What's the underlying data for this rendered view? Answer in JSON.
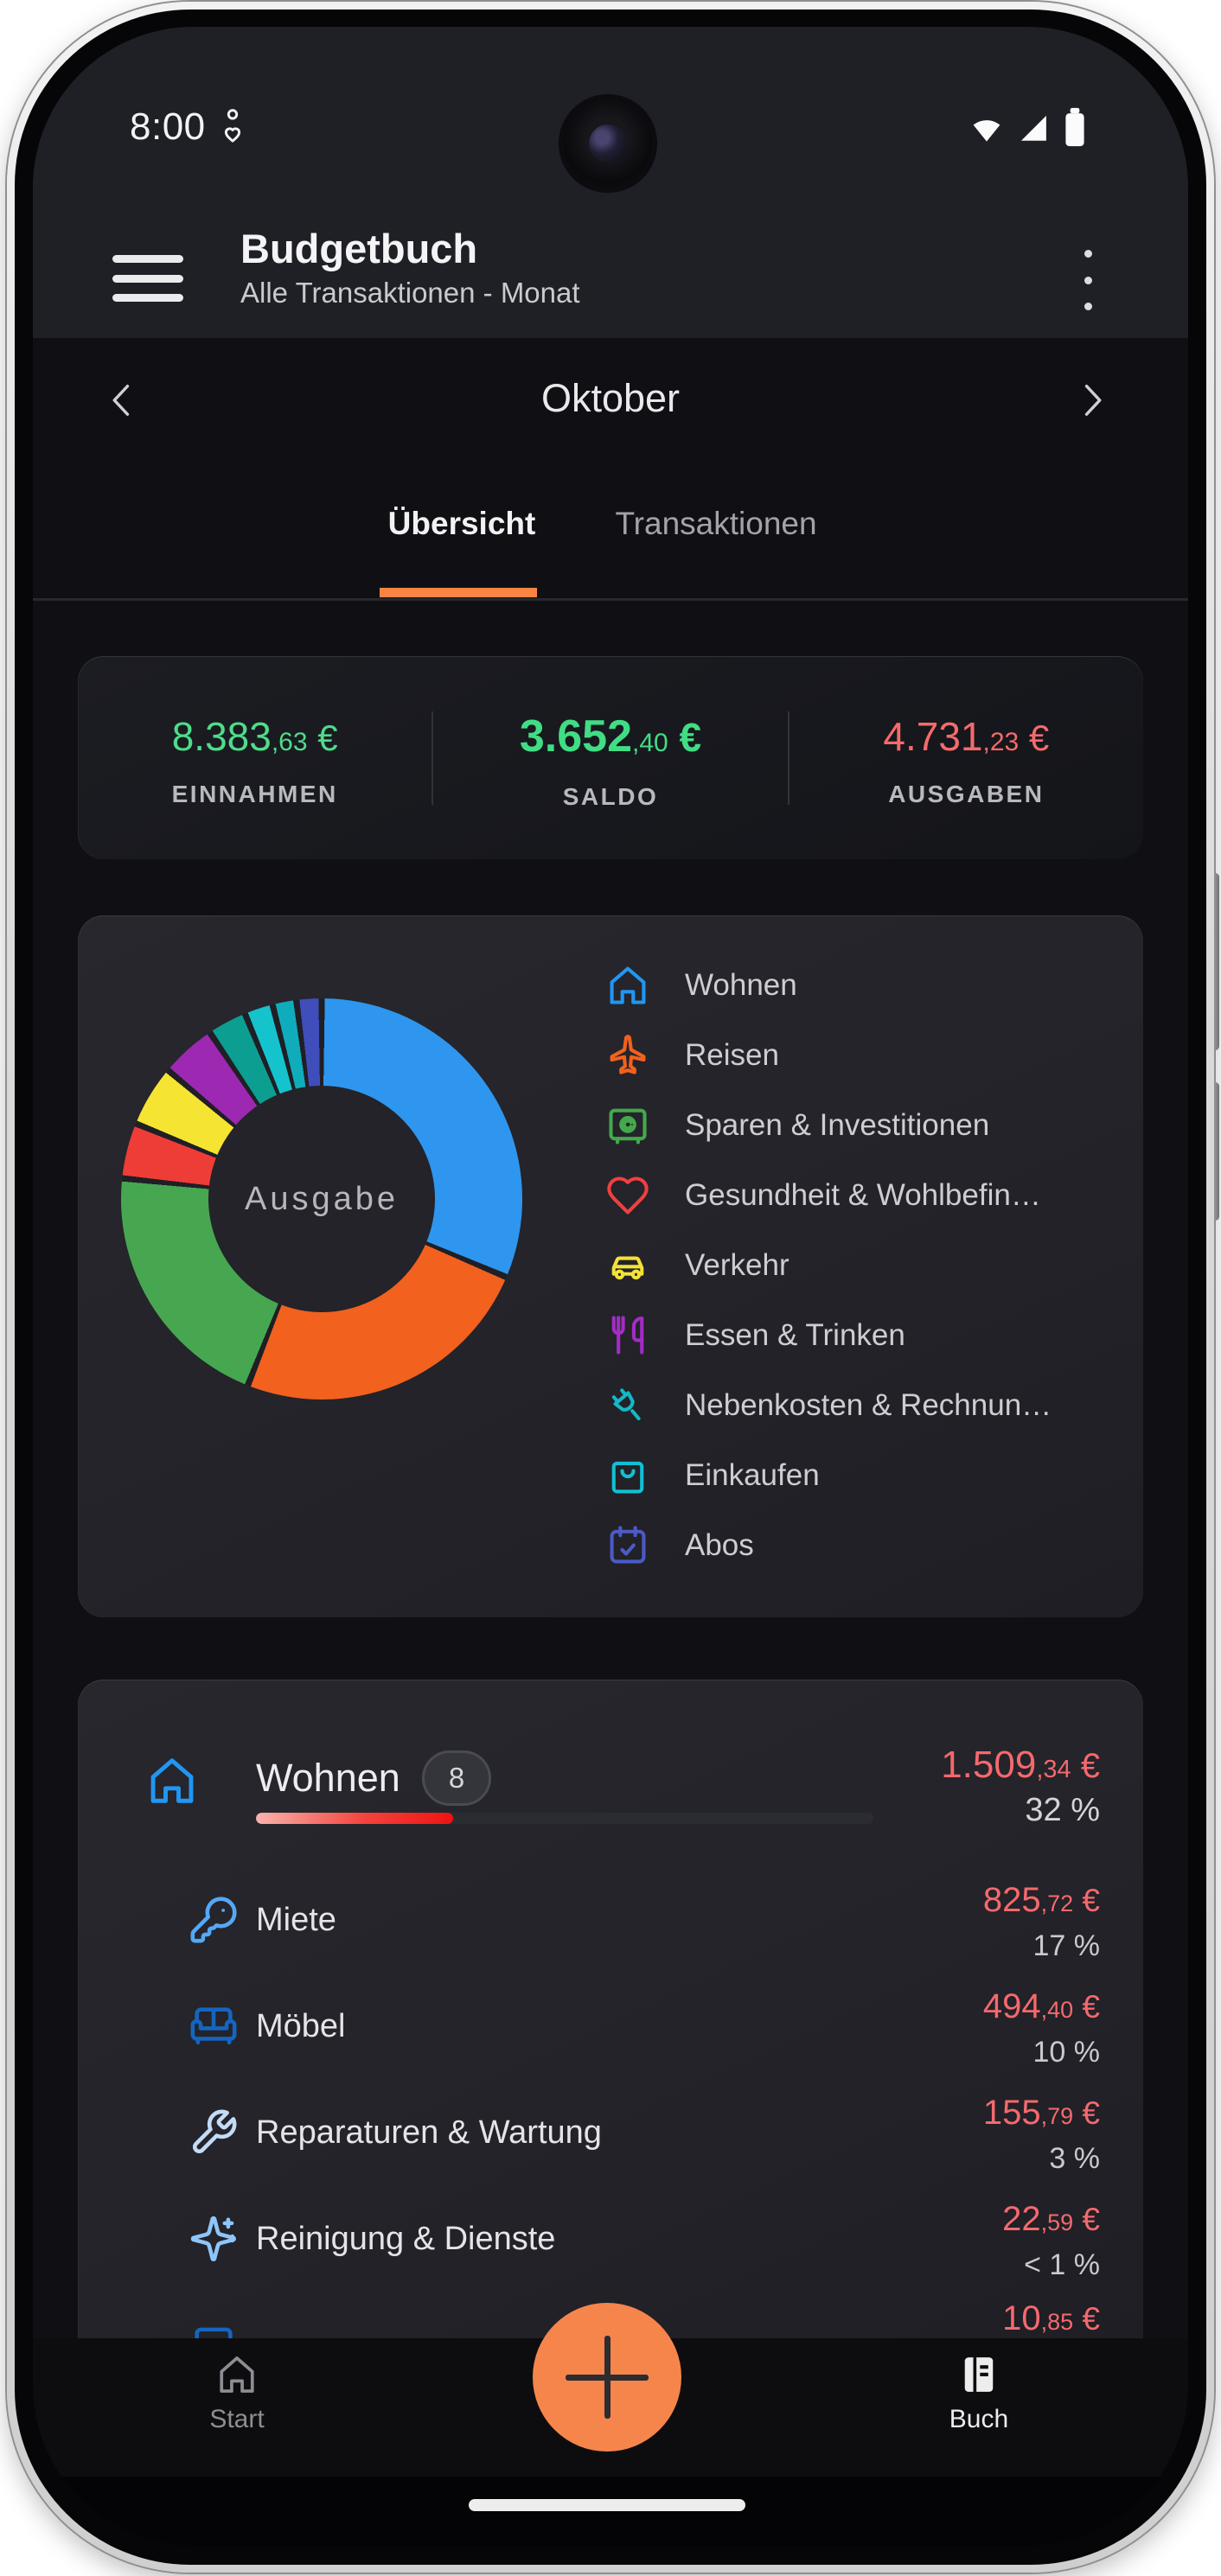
{
  "status": {
    "time": "8:00",
    "left_icon": "notification-person-heart-icon",
    "right_icons": [
      "wifi-icon",
      "cellular-signal-icon",
      "battery-icon"
    ]
  },
  "app_bar": {
    "title": "Budgetbuch",
    "subtitle": "Alle Transaktionen - Monat",
    "menu_icon": "hamburger-menu-icon",
    "overflow_icon": "kebab-menu-icon"
  },
  "month_nav": {
    "month": "Oktober",
    "prev": "‹",
    "next": "›"
  },
  "tabs": {
    "items": [
      {
        "label": "Übersicht",
        "active": true
      },
      {
        "label": "Transaktionen",
        "active": false
      }
    ]
  },
  "summary": {
    "items": [
      {
        "main": "8.383",
        "dec": ",63",
        "cur": " €",
        "label": "EINNAHMEN"
      },
      {
        "main": "3.652",
        "dec": ",40",
        "cur": " €",
        "label": "SALDO"
      },
      {
        "main": "4.731",
        "dec": ",23",
        "cur": " €",
        "label": "AUSGABEN"
      }
    ]
  },
  "chart_data": {
    "type": "pie",
    "style": "donut",
    "center_label": "Ausgabe",
    "unit": "%",
    "gap_deg": 1.8,
    "slices": [
      {
        "name": "Wohnen",
        "color": "#2e96ee",
        "value": 32.5
      },
      {
        "name": "Reisen",
        "color": "#f2611e",
        "value": 25.4
      },
      {
        "name": "Sparen & Investitionen",
        "color": "#47a751",
        "value": 21.2
      },
      {
        "name": "Gesundheit & Wohlbefin…",
        "color": "#ee3d36",
        "value": 4.2
      },
      {
        "name": "Verkehr",
        "color": "#f6e433",
        "value": 4.7
      },
      {
        "name": "Essen & Trinken",
        "color": "#9d28b1",
        "value": 4.2
      },
      {
        "name": "Nebenkosten & Rechnun…",
        "color": "#0c9e90",
        "value": 2.8
      },
      {
        "name": "Einkaufen",
        "color": "#15c3cd",
        "value": 1.9
      },
      {
        "name": "",
        "color": "#0fadbb",
        "value": 1.5
      },
      {
        "name": "Abos",
        "color": "#3f4eba",
        "value": 1.6
      }
    ]
  },
  "legend": {
    "items": [
      {
        "label": "Wohnen",
        "icon": "house-icon",
        "color": "#2196f3"
      },
      {
        "label": "Reisen",
        "icon": "plane-icon",
        "color": "#f2611e"
      },
      {
        "label": "Sparen & Investitionen",
        "icon": "safe-icon",
        "color": "#43a94c"
      },
      {
        "label": "Gesundheit & Wohlbefin…",
        "icon": "heart-icon",
        "color": "#ef4040"
      },
      {
        "label": "Verkehr",
        "icon": "car-icon",
        "color": "#f2e238"
      },
      {
        "label": "Essen & Trinken",
        "icon": "utensils-icon",
        "color": "#a32cc4"
      },
      {
        "label": "Nebenkosten & Rechnun…",
        "icon": "plug-icon",
        "color": "#14b8c8"
      },
      {
        "label": "Einkaufen",
        "icon": "shopping-bag-icon",
        "color": "#10c0d4"
      },
      {
        "label": "Abos",
        "icon": "calendar-check-icon",
        "color": "#4c5ac6"
      }
    ]
  },
  "category_card": {
    "title": "Wohnen",
    "count": "8",
    "icon": "house-icon",
    "icon_color": "#2196f3",
    "amount": {
      "main": "1.509",
      "dec": ",34",
      "cur": " €"
    },
    "percent": "32 %",
    "progress_percent": 32,
    "rows": [
      {
        "label": "Miete",
        "icon": "key-icon",
        "color": "#54a8f6",
        "amount": {
          "main": "825",
          "dec": ",72",
          "cur": " €"
        },
        "percent": "17 %"
      },
      {
        "label": "Möbel",
        "icon": "sofa-icon",
        "color": "#1565c0",
        "amount": {
          "main": "494",
          "dec": ",40",
          "cur": " €"
        },
        "percent": "10 %"
      },
      {
        "label": "Reparaturen & Wartung",
        "icon": "wrench-icon",
        "color": "#c3dcf6",
        "amount": {
          "main": "155",
          "dec": ",79",
          "cur": " €"
        },
        "percent": "3 %"
      },
      {
        "label": "Reinigung & Dienste",
        "icon": "sparkles-icon",
        "color": "#8fc5f8",
        "amount": {
          "main": "22",
          "dec": ",59",
          "cur": " €"
        },
        "percent": "< 1 %"
      },
      {
        "label": "",
        "icon": "frame-icon",
        "color": "#1565c0",
        "amount": {
          "main": "10",
          "dec": ",85",
          "cur": " €"
        },
        "percent": ""
      }
    ]
  },
  "bottom_nav": {
    "items": [
      {
        "label": "Start",
        "icon": "home-icon"
      },
      {
        "label": "Buch",
        "icon": "book-icon"
      }
    ],
    "fab_icon": "plus-icon"
  },
  "colors": {
    "accent_orange": "#fb8443",
    "fab_orange": "#f6854b",
    "income_green": "#4fdc8a",
    "balance_green": "#41dd85",
    "expense_red": "#f56b6b",
    "amount_red": "#f5696d",
    "page_bg": "#101014",
    "chrome_bg": "#1e2025",
    "card_bg": "#232329"
  }
}
